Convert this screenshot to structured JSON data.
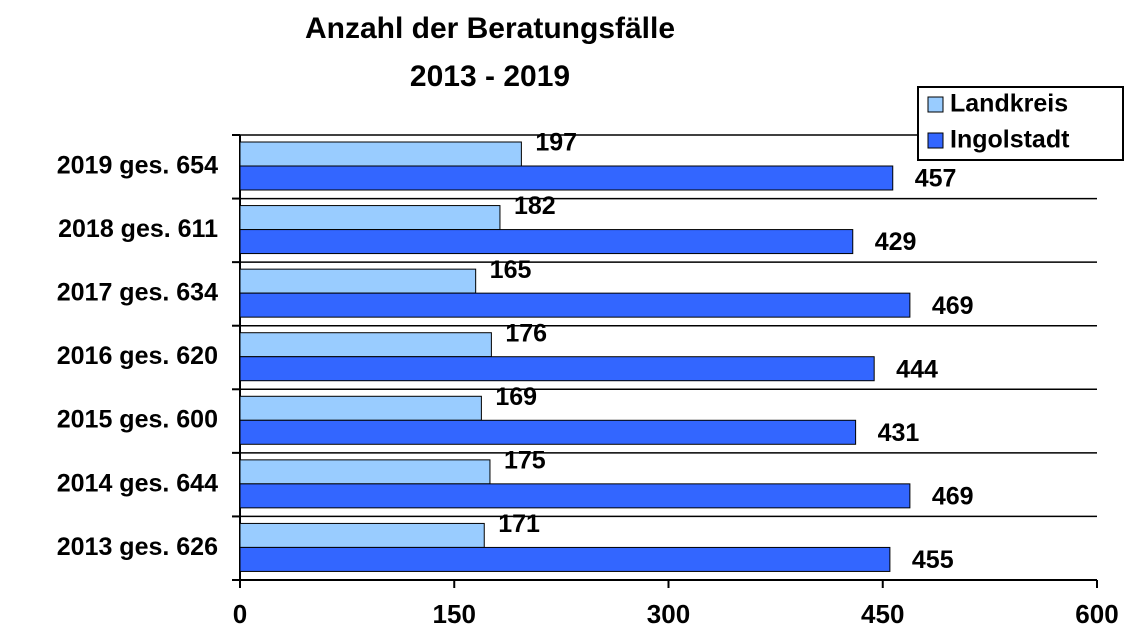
{
  "chart_data": {
    "type": "barh",
    "title": "Anzahl der Beratungsfälle",
    "subtitle": "2013 - 2019",
    "categories": [
      "2019 ges. 654",
      "2018 ges. 611",
      "2017 ges. 634",
      "2016 ges. 620",
      "2015 ges. 600",
      "2014 ges. 644",
      "2013 ges. 626"
    ],
    "series": [
      {
        "name": "Landkreis",
        "color": "#99ccff",
        "values": [
          197,
          182,
          165,
          176,
          169,
          175,
          171
        ]
      },
      {
        "name": "Ingolstadt",
        "color": "#3366ff",
        "values": [
          457,
          429,
          469,
          444,
          431,
          469,
          455
        ]
      }
    ],
    "xlim": [
      0,
      600
    ],
    "xticks": [
      0,
      150,
      300,
      450,
      600
    ],
    "legend": "top-right"
  }
}
